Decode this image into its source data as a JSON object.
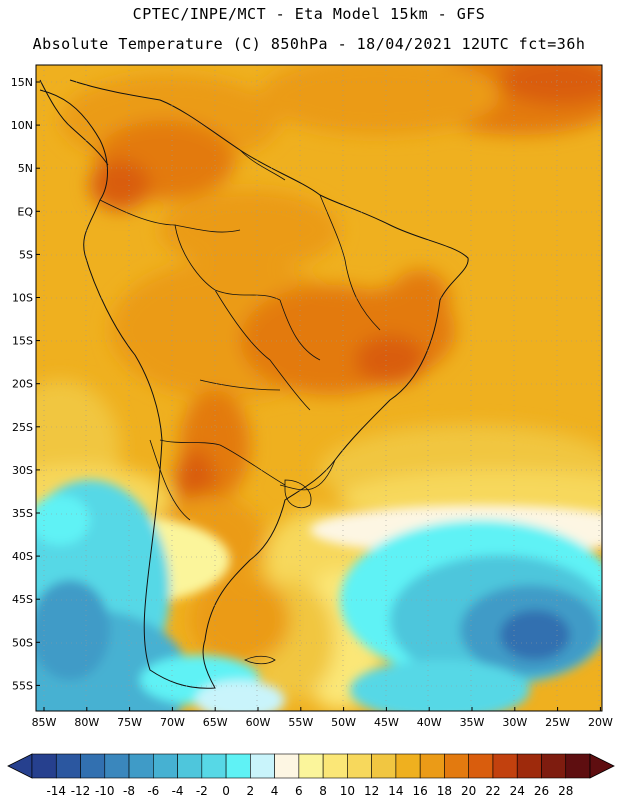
{
  "header": {
    "line1": "CPTEC/INPE/MCT -  Eta Model 15km - GFS",
    "line2": "Absolute Temperature (C) 850hPa - 18/04/2021 12UTC fct=36h"
  },
  "map": {
    "lat_labels": [
      "15N",
      "10N",
      "5N",
      "EQ",
      "5S",
      "10S",
      "15S",
      "20S",
      "25S",
      "30S",
      "35S",
      "40S",
      "45S",
      "50S",
      "55S"
    ],
    "lon_labels": [
      "85W",
      "80W",
      "75W",
      "70W",
      "65W",
      "60W",
      "55W",
      "50W",
      "45W",
      "40W",
      "35W",
      "30W",
      "25W",
      "20W"
    ]
  },
  "colorbar": {
    "labels": [
      "-14",
      "-12",
      "-10",
      "-8",
      "-6",
      "-4",
      "-2",
      "0",
      "2",
      "4",
      "6",
      "8",
      "10",
      "12",
      "14",
      "16",
      "18",
      "20",
      "22",
      "24",
      "26",
      "28"
    ],
    "colors": [
      "#26408e",
      "#2b57a0",
      "#3270b0",
      "#3a87bd",
      "#3f9bc7",
      "#46b1d2",
      "#4ec6dc",
      "#57d8e6",
      "#5ff2f5",
      "#c9f4fb",
      "#fdf6e3",
      "#fbf59b",
      "#fbe777",
      "#f7d85c",
      "#f1c641",
      "#efb01f",
      "#eb9b17",
      "#e37a0f",
      "#d95d0d",
      "#c2410e",
      "#9e2a0c",
      "#7e1c0f",
      "#5e0e10"
    ]
  }
}
